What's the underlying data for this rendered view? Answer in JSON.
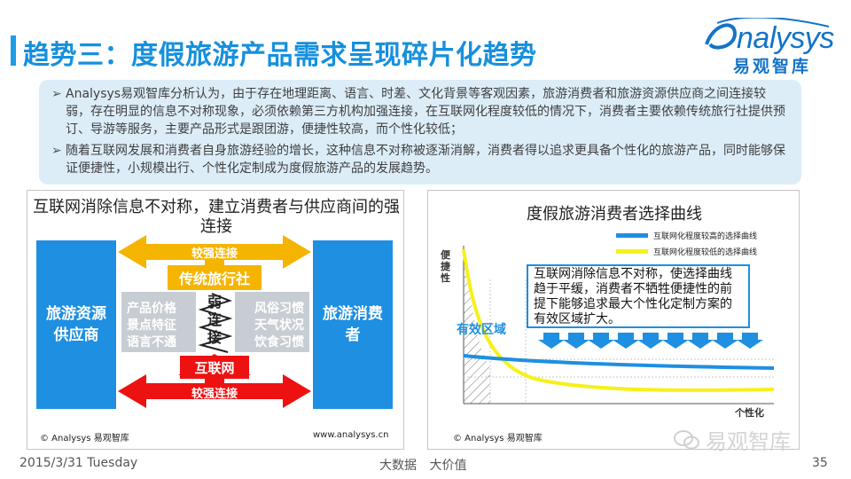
{
  "header": {
    "title": "趋势三：度假旅游产品需求呈现碎片化趋势"
  },
  "logo": {
    "word": "nalysys",
    "cn": "易观智库",
    "color": "#1473c8"
  },
  "summary": {
    "bullets": [
      "Analysys易观智库分析认为，由于存在地理距离、语言、时差、文化背景等客观因素，旅游消费者和旅游资源供应商之间连接较弱，存在明显的信息不对称现象，必须依赖第三方机构加强连接，在互联网化程度较低的情况下，消费者主要依赖传统旅行社提供预订、导游等服务，主要产品形式是跟团游，便捷性较高，而个性化较低；",
      "随着互联网发展和消费者自身旅游经验的增长，这种信息不对称被逐渐消解，消费者得以追求更具备个性化的旅游产品，同时能够保证便捷性，小规模出行、个性化定制成为度假旅游产品的发展趋势。"
    ],
    "bullet_icon": "arrow-right-icon"
  },
  "left_panel": {
    "title": "互联网消除信息不对称，建立消费者与供应商间的强连接",
    "supplier": "旅游资源供应商",
    "consumer": "旅游消费者",
    "top_arrow": {
      "label": "较强连接",
      "color": "#f5b400"
    },
    "agency": "传统旅行社",
    "weak_link": "弱连接",
    "left_factors": [
      "产品价格",
      "景点特征",
      "语言不通"
    ],
    "right_factors": [
      "风俗习惯",
      "天气状况",
      "饮食习惯"
    ],
    "internet": "互联网",
    "bottom_arrow": {
      "label": "较强连接",
      "color": "#ee1111"
    },
    "copyright": "© Analysys 易观智库",
    "url": "www.analysys.cn"
  },
  "right_panel": {
    "title": "度假旅游消费者选择曲线",
    "legend": [
      {
        "label": "互联网化程度较高的选择曲线",
        "color": "#1e8fe1"
      },
      {
        "label": "互联网化程度较低的选择曲线",
        "color": "#f7f01a"
      }
    ],
    "y_axis_label": "便捷性",
    "x_axis_label": "个性化",
    "effective_area": "有效区域",
    "callout": "互联网消除信息不对称，使选择曲线趋于平缓，消费者不牺牲便捷性的前提下能够追求最大个性化定制方案的有效区域扩大。",
    "copyright": "© Analysys 易观智库"
  },
  "footer": {
    "date": "2015/3/31 Tuesday",
    "center": "大数据 大价值",
    "page": "35"
  },
  "watermark": "易观智库"
}
